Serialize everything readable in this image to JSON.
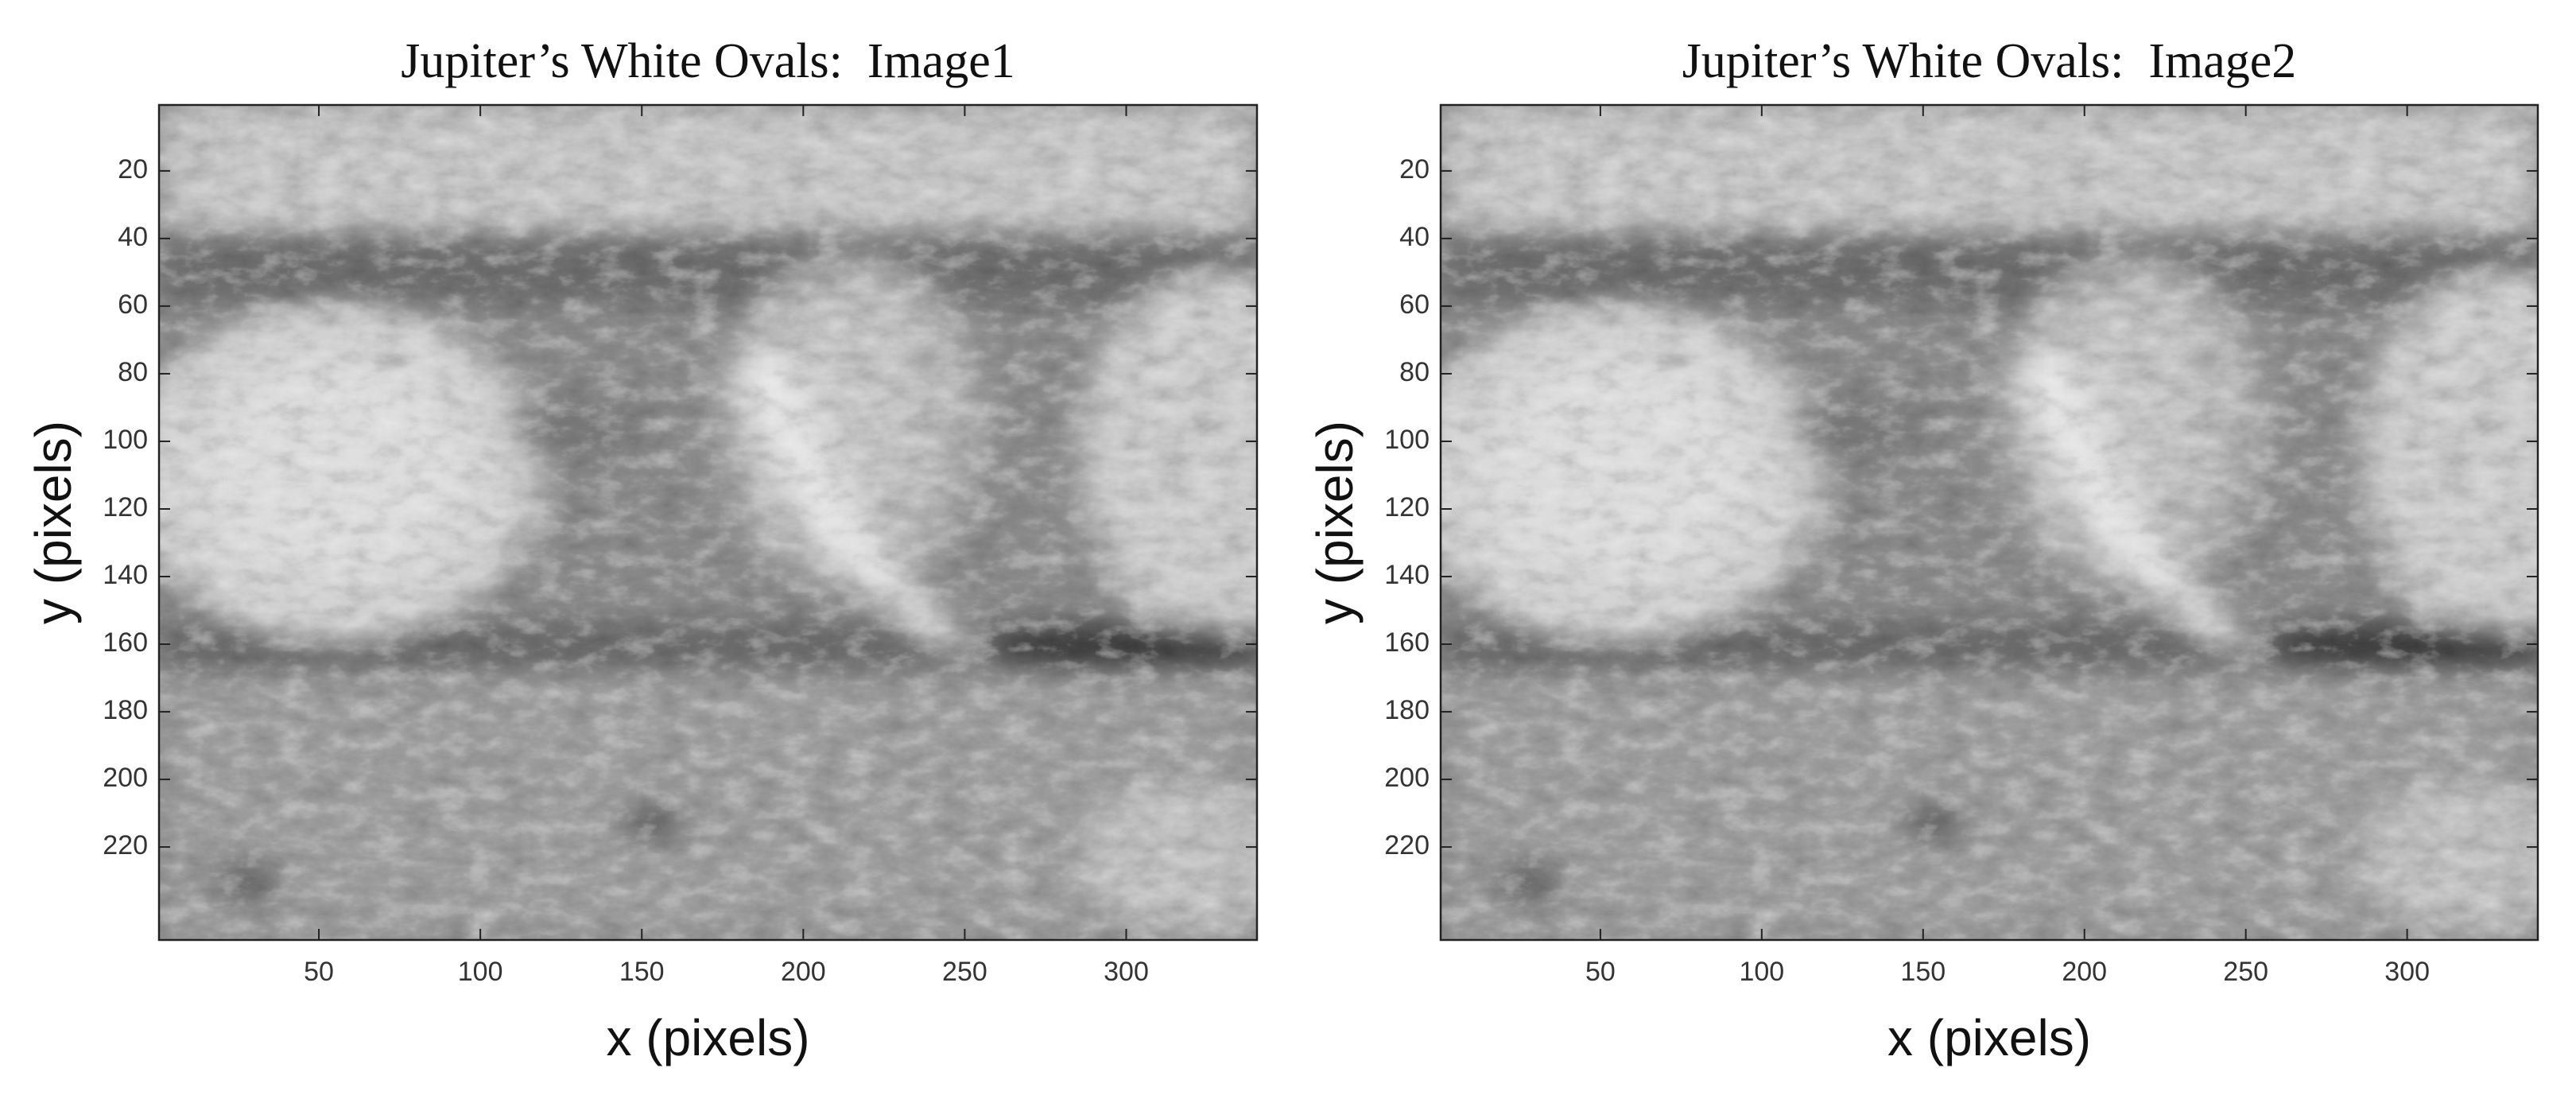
{
  "chart_data": [
    {
      "type": "image",
      "title": "Jupiter’s White Ovals:  Image1",
      "x_label": "x (pixels)",
      "y_label": "y (pixels)",
      "xlim": [
        0.5,
        340.5
      ],
      "ylim": [
        247.5,
        0.5
      ],
      "xticks": [
        50,
        100,
        150,
        200,
        250,
        300
      ],
      "yticks": [
        20,
        40,
        60,
        80,
        100,
        120,
        140,
        160,
        180,
        200,
        220
      ]
    },
    {
      "type": "image",
      "title": "Jupiter’s White Ovals:  Image2",
      "x_label": "x (pixels)",
      "y_label": "y (pixels)",
      "xlim": [
        0.5,
        340.5
      ],
      "ylim": [
        247.5,
        0.5
      ],
      "xticks": [
        50,
        100,
        150,
        200,
        250,
        300
      ],
      "yticks": [
        20,
        40,
        60,
        80,
        100,
        120,
        140,
        160,
        180,
        200,
        220
      ]
    }
  ]
}
